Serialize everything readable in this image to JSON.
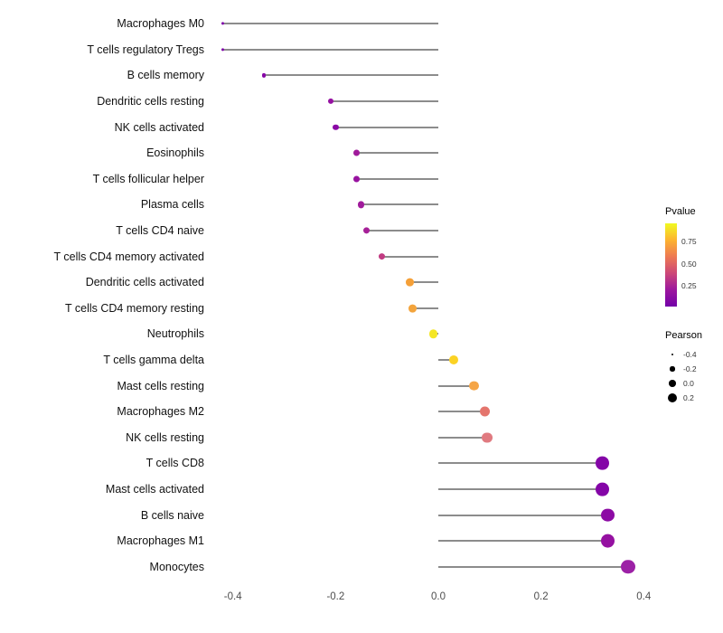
{
  "chart_data": {
    "type": "lollipop",
    "title": "",
    "xlabel": "",
    "ylabel": "",
    "xlim": [
      -0.44,
      0.44
    ],
    "grid": false,
    "x_ticks": [
      {
        "value": -0.4,
        "label": "-0.4"
      },
      {
        "value": -0.2,
        "label": "-0.2"
      },
      {
        "value": 0.0,
        "label": "0.0"
      },
      {
        "value": 0.2,
        "label": "0.2"
      },
      {
        "value": 0.4,
        "label": "0.4"
      }
    ],
    "points": [
      {
        "label": "Macrophages M0",
        "pearson": -0.42,
        "pvalue": 0.1,
        "color": "#7e03a8"
      },
      {
        "label": "T cells regulatory  Tregs",
        "pearson": -0.42,
        "pvalue": 0.1,
        "color": "#7e03a8"
      },
      {
        "label": "B cells memory",
        "pearson": -0.34,
        "pvalue": 0.12,
        "color": "#8606a6"
      },
      {
        "label": "Dendritic cells resting",
        "pearson": -0.21,
        "pvalue": 0.15,
        "color": "#9511a1"
      },
      {
        "label": "NK cells activated",
        "pearson": -0.2,
        "pvalue": 0.12,
        "color": "#8a09a5"
      },
      {
        "label": "Eosinophils",
        "pearson": -0.16,
        "pvalue": 0.18,
        "color": "#a01b9b"
      },
      {
        "label": "T cells follicular helper",
        "pearson": -0.16,
        "pvalue": 0.16,
        "color": "#9812a0"
      },
      {
        "label": "Plasma cells",
        "pearson": -0.15,
        "pvalue": 0.18,
        "color": "#a01b9b"
      },
      {
        "label": "T cells CD4 naive",
        "pearson": -0.14,
        "pvalue": 0.2,
        "color": "#a62098"
      },
      {
        "label": "T cells CD4 memory activated",
        "pearson": -0.11,
        "pvalue": 0.32,
        "color": "#c13b82"
      },
      {
        "label": "Dendritic cells activated",
        "pearson": -0.055,
        "pvalue": 0.68,
        "color": "#f5a038"
      },
      {
        "label": "T cells CD4 memory resting",
        "pearson": -0.05,
        "pvalue": 0.66,
        "color": "#f3a43c"
      },
      {
        "label": "Neutrophils",
        "pearson": -0.01,
        "pvalue": 0.92,
        "color": "#f4e625"
      },
      {
        "label": "T cells gamma delta",
        "pearson": 0.03,
        "pvalue": 0.85,
        "color": "#fbd224"
      },
      {
        "label": "Mast cells resting",
        "pearson": 0.07,
        "pvalue": 0.64,
        "color": "#f5a546"
      },
      {
        "label": "Macrophages M2",
        "pearson": 0.09,
        "pvalue": 0.48,
        "color": "#e4756d"
      },
      {
        "label": "NK cells resting",
        "pearson": 0.095,
        "pvalue": 0.45,
        "color": "#e07a80"
      },
      {
        "label": "T cells CD8",
        "pearson": 0.32,
        "pvalue": 0.08,
        "color": "#8405a7"
      },
      {
        "label": "Mast cells activated",
        "pearson": 0.32,
        "pvalue": 0.08,
        "color": "#8405a7"
      },
      {
        "label": "B cells naive",
        "pearson": 0.33,
        "pvalue": 0.1,
        "color": "#8c0ba4"
      },
      {
        "label": "Macrophages M1",
        "pearson": 0.33,
        "pvalue": 0.13,
        "color": "#9511a1"
      },
      {
        "label": "Monocytes",
        "pearson": 0.37,
        "pvalue": 0.16,
        "color": "#9c21a6"
      }
    ],
    "legend": {
      "pvalue_title": "Pvalue",
      "pvalue_ticks": [
        {
          "value": 0.75,
          "label": "0.75"
        },
        {
          "value": 0.5,
          "label": "0.50"
        },
        {
          "value": 0.25,
          "label": "0.25"
        }
      ],
      "colorbar_domain": [
        0.95,
        0.02
      ],
      "colorbar_colors": [
        "#f0f921",
        "#fdb32f",
        "#ed7953",
        "#cc4778",
        "#9c179e",
        "#7301a8"
      ],
      "pearson_title": "Pearson",
      "pearson_items": [
        {
          "value": -0.4,
          "label": "-0.4"
        },
        {
          "value": -0.2,
          "label": "-0.2"
        },
        {
          "value": 0.0,
          "label": "0.0"
        },
        {
          "value": 0.2,
          "label": "0.2"
        }
      ]
    }
  }
}
